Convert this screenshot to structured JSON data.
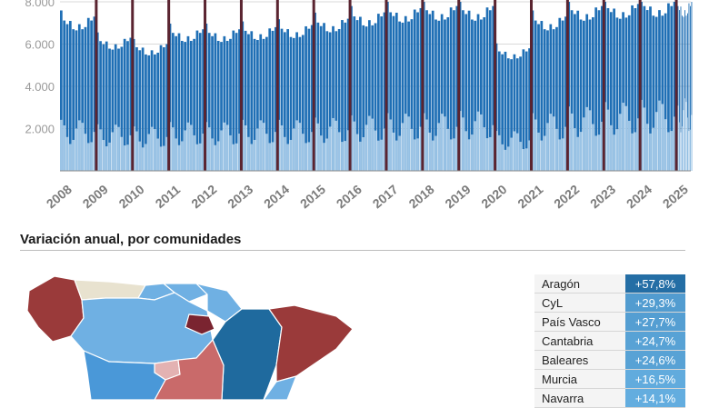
{
  "chart_data": {
    "type": "bar",
    "x": [
      "2008",
      "2009",
      "2010",
      "2011",
      "2012",
      "2013",
      "2014",
      "2015",
      "2016",
      "2017",
      "2018",
      "2019",
      "2020",
      "2021",
      "2022",
      "2023",
      "2024",
      "2025"
    ],
    "yticks": [
      "2.000",
      "4.000",
      "6.000",
      "8.000"
    ],
    "ylim": [
      0,
      8000
    ],
    "grid": true,
    "series": [
      {
        "values": [
          7300,
          6300,
          6000,
          6700,
          6700,
          6800,
          6900,
          7200,
          7500,
          7700,
          7800,
          7800,
          5800,
          7300,
          7800,
          7900,
          8000,
          8000
        ]
      },
      {
        "values": [
          2300,
          2100,
          2000,
          2200,
          2200,
          2300,
          2300,
          2400,
          2500,
          2600,
          2600,
          2700,
          1800,
          2600,
          2900,
          3100,
          3200,
          3300
        ]
      }
    ],
    "colors": {
      "upper": "#1f6fb5",
      "lower": "#9bc4e6",
      "separator": "#5a2430"
    }
  },
  "section": {
    "title": "Variación anual, por comunidades"
  },
  "ranking": [
    {
      "region": "Aragón",
      "value": "+57,8%",
      "pct": 57.8
    },
    {
      "region": "CyL",
      "value": "+29,3%",
      "pct": 29.3
    },
    {
      "region": "País Vasco",
      "value": "+27,7%",
      "pct": 27.7
    },
    {
      "region": "Cantabria",
      "value": "+24,7%",
      "pct": 24.7
    },
    {
      "region": "Baleares",
      "value": "+24,6%",
      "pct": 24.6
    },
    {
      "region": "Murcia",
      "value": "+16,5%",
      "pct": 16.5
    },
    {
      "region": "Navarra",
      "value": "+14,1%",
      "pct": 14.1
    }
  ],
  "map_colors": {
    "aragon": "#1f6a9e",
    "dark_red": "#9a3a3a",
    "rioja": "#7a2430",
    "light_blue": "#6fb0e3",
    "mid_blue": "#4a98d8",
    "beige": "#e8e2cf",
    "salmon": "#c96a6a",
    "pink": "#e3b2b2"
  }
}
